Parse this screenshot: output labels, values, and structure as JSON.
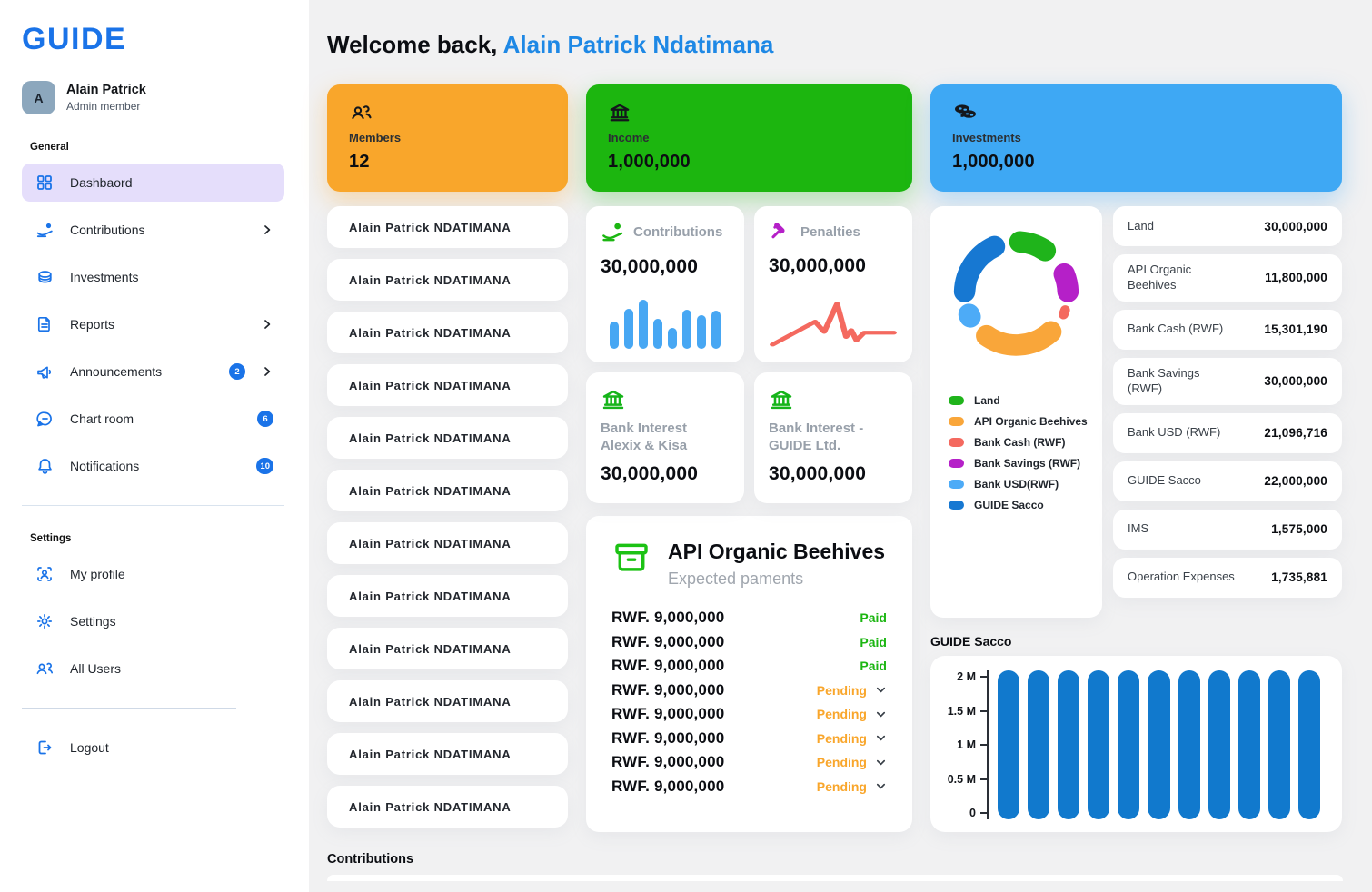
{
  "app": {
    "logo": "GUIDE"
  },
  "sidebar": {
    "profile": {
      "initial": "A",
      "name": "Alain Patrick",
      "role": "Admin member"
    },
    "sections": {
      "general": "General",
      "settings": "Settings"
    },
    "items": [
      {
        "label": "Dashbaord"
      },
      {
        "label": "Contributions"
      },
      {
        "label": "Investments"
      },
      {
        "label": "Reports"
      },
      {
        "label": "Announcements",
        "badge": "2"
      },
      {
        "label": "Chart room",
        "badge": "6"
      },
      {
        "label": "Notifications",
        "badge": "10"
      },
      {
        "label": "My profile"
      },
      {
        "label": "Settings"
      },
      {
        "label": "All Users"
      },
      {
        "label": "Logout"
      }
    ]
  },
  "header": {
    "welcome": "Welcome back,",
    "name": "Alain Patrick Ndatimana"
  },
  "stats": [
    {
      "label": "Members",
      "value": "12",
      "color": "#F9A62B"
    },
    {
      "label": "Income",
      "value": "1,000,000",
      "color": "#1CB60F"
    },
    {
      "label": "Investments",
      "value": "1,000,000",
      "color": "#3EA8F4"
    }
  ],
  "members": {
    "list": [
      "Alain Patrick NDATIMANA",
      "Alain Patrick NDATIMANA",
      "Alain Patrick NDATIMANA",
      "Alain Patrick NDATIMANA",
      "Alain Patrick NDATIMANA",
      "Alain Patrick NDATIMANA",
      "Alain Patrick NDATIMANA",
      "Alain Patrick NDATIMANA",
      "Alain Patrick NDATIMANA",
      "Alain Patrick NDATIMANA",
      "Alain Patrick NDATIMANA",
      "Alain Patrick NDATIMANA"
    ]
  },
  "summary_cards": {
    "contributions": {
      "title": "Contributions",
      "value": "30,000,000"
    },
    "penalties": {
      "title": "Penalties",
      "value": "30,000,000"
    },
    "bank_interest_1": {
      "title": "Bank Interest Alexix & Kisa",
      "value": "30,000,000"
    },
    "bank_interest_2": {
      "title": "Bank Interest - GUIDE Ltd.",
      "value": "30,000,000"
    }
  },
  "beehives": {
    "title": "API Organic Beehives",
    "subtitle": "Expected paments",
    "payments": [
      {
        "amount": "RWF. 9,000,000",
        "status": "Paid"
      },
      {
        "amount": "RWF. 9,000,000",
        "status": "Paid"
      },
      {
        "amount": "RWF. 9,000,000",
        "status": "Paid"
      },
      {
        "amount": "RWF. 9,000,000",
        "status": "Pending"
      },
      {
        "amount": "RWF. 9,000,000",
        "status": "Pending"
      },
      {
        "amount": "RWF. 9,000,000",
        "status": "Pending"
      },
      {
        "amount": "RWF. 9,000,000",
        "status": "Pending"
      },
      {
        "amount": "RWF. 9,000,000",
        "status": "Pending"
      }
    ]
  },
  "allocation_legend": [
    {
      "label": "Land",
      "color": "#1fb41b"
    },
    {
      "label": "API Organic Beehives",
      "color": "#f9a63a"
    },
    {
      "label": "Bank Cash (RWF)",
      "color": "#f4695f"
    },
    {
      "label": "Bank Savings (RWF)",
      "color": "#b520c8"
    },
    {
      "label": "Bank USD(RWF)",
      "color": "#4dabf7"
    },
    {
      "label": "GUIDE Sacco",
      "color": "#1778d2"
    }
  ],
  "asset_values": [
    {
      "label": "Land",
      "value": "30,000,000"
    },
    {
      "label": "API Organic Beehives",
      "value": "11,800,000"
    },
    {
      "label": "Bank Cash (RWF)",
      "value": "15,301,190"
    },
    {
      "label": "Bank Savings (RWF)",
      "value": "30,000,000"
    },
    {
      "label": "Bank USD (RWF)",
      "value": "21,096,716"
    },
    {
      "label": "GUIDE Sacco",
      "value": "22,000,000"
    },
    {
      "label": "IMS",
      "value": "1,575,000"
    },
    {
      "label": "Operation Expenses",
      "value": "1,735,881"
    }
  ],
  "sacco": {
    "heading": "GUIDE Sacco"
  },
  "footer": {
    "heading": "Contributions"
  },
  "chart_data": [
    {
      "id": "allocation-donut",
      "type": "pie",
      "title": "Investments allocation",
      "legend_position": "bottom",
      "segments": [
        {
          "label": "Land",
          "color": "#1fb41b",
          "value": 30000000,
          "arc": [
            4,
            34
          ]
        },
        {
          "label": "Bank Savings (RWF)",
          "color": "#b520c8",
          "value": 30000000,
          "arc": [
            68,
            88
          ]
        },
        {
          "label": "Bank Cash (RWF)",
          "color": "#f4695f",
          "value": 15301190,
          "arc": [
            109,
            114
          ],
          "thin": true
        },
        {
          "label": "API Organic Beehives",
          "color": "#f9a63a",
          "value": 11800000,
          "arc": [
            138,
            215
          ]
        },
        {
          "label": "Bank USD(RWF)",
          "color": "#4dabf7",
          "value": 21096716,
          "arc": [
            243,
            246
          ]
        },
        {
          "label": "GUIDE Sacco",
          "color": "#1778d2",
          "value": 22000000,
          "arc": [
            272,
            335
          ]
        }
      ]
    },
    {
      "id": "contributions-spark",
      "type": "bar",
      "values": [
        56,
        81,
        100,
        61,
        43,
        80,
        68,
        78
      ],
      "ylim": [
        0,
        100
      ],
      "color": "#47a7f3"
    },
    {
      "id": "penalties-spark",
      "type": "line",
      "points": [
        [
          3,
          55
        ],
        [
          36,
          28
        ],
        [
          43,
          40
        ],
        [
          53,
          7
        ],
        [
          60,
          46
        ],
        [
          64,
          38
        ],
        [
          68,
          50
        ],
        [
          74,
          41
        ],
        [
          97,
          41
        ]
      ],
      "color": "#f4695f"
    },
    {
      "id": "guide-sacco",
      "type": "bar",
      "title": "GUIDE Sacco",
      "y_ticks": [
        "2 M",
        "1.5 M",
        "1 M",
        "0.5 M",
        "0"
      ],
      "values": [
        2,
        2,
        2,
        2,
        2,
        2,
        2,
        2,
        2,
        2,
        2
      ],
      "ylim": [
        0,
        2
      ],
      "unit": "M",
      "color": "#1179cd"
    }
  ]
}
